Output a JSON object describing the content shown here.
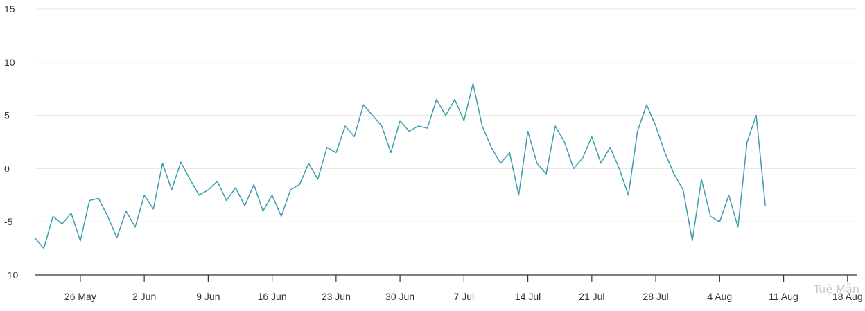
{
  "chart_data": {
    "type": "line",
    "title": "",
    "xlabel": "",
    "ylabel": "",
    "ylim": [
      -10,
      15
    ],
    "yticks": [
      "15",
      "10",
      "5",
      "0",
      "-5",
      "-10"
    ],
    "ytick_values": [
      15,
      10,
      5,
      0,
      -5,
      -10
    ],
    "xticks": [
      "26 May",
      "2 Jun",
      "9 Jun",
      "16 Jun",
      "23 Jun",
      "30 Jun",
      "7 Jul",
      "14 Jul",
      "21 Jul",
      "28 Jul",
      "4 Aug",
      "11 Aug",
      "18 Aug"
    ],
    "xtick_dates": [
      "2024-05-26",
      "2024-06-02",
      "2024-06-09",
      "2024-06-16",
      "2024-06-23",
      "2024-06-30",
      "2024-07-07",
      "2024-07-14",
      "2024-07-21",
      "2024-07-28",
      "2024-08-04",
      "2024-08-11",
      "2024-08-18"
    ],
    "x_range": [
      "2024-05-21",
      "2024-08-19"
    ],
    "grid": true,
    "series": [
      {
        "color": "#3a9cad",
        "points": [
          [
            "2024-05-21",
            -6.5
          ],
          [
            "2024-05-22",
            -7.5
          ],
          [
            "2024-05-23",
            -4.5
          ],
          [
            "2024-05-24",
            -5.2
          ],
          [
            "2024-05-25",
            -4.2
          ],
          [
            "2024-05-26",
            -6.8
          ],
          [
            "2024-05-27",
            -3.0
          ],
          [
            "2024-05-28",
            -2.8
          ],
          [
            "2024-05-29",
            -4.5
          ],
          [
            "2024-05-30",
            -6.5
          ],
          [
            "2024-05-31",
            -4.0
          ],
          [
            "2024-06-01",
            -5.5
          ],
          [
            "2024-06-02",
            -2.5
          ],
          [
            "2024-06-03",
            -3.8
          ],
          [
            "2024-06-04",
            0.5
          ],
          [
            "2024-06-05",
            -2.0
          ],
          [
            "2024-06-06",
            0.6
          ],
          [
            "2024-06-07",
            -1.0
          ],
          [
            "2024-06-08",
            -2.5
          ],
          [
            "2024-06-09",
            -2.0
          ],
          [
            "2024-06-10",
            -1.2
          ],
          [
            "2024-06-11",
            -3.0
          ],
          [
            "2024-06-12",
            -1.8
          ],
          [
            "2024-06-13",
            -3.5
          ],
          [
            "2024-06-14",
            -1.5
          ],
          [
            "2024-06-15",
            -4.0
          ],
          [
            "2024-06-16",
            -2.5
          ],
          [
            "2024-06-17",
            -4.5
          ],
          [
            "2024-06-18",
            -2.0
          ],
          [
            "2024-06-19",
            -1.5
          ],
          [
            "2024-06-20",
            0.5
          ],
          [
            "2024-06-21",
            -1.0
          ],
          [
            "2024-06-22",
            2.0
          ],
          [
            "2024-06-23",
            1.5
          ],
          [
            "2024-06-24",
            4.0
          ],
          [
            "2024-06-25",
            3.0
          ],
          [
            "2024-06-26",
            6.0
          ],
          [
            "2024-06-27",
            5.0
          ],
          [
            "2024-06-28",
            4.0
          ],
          [
            "2024-06-29",
            1.5
          ],
          [
            "2024-06-30",
            4.5
          ],
          [
            "2024-07-01",
            3.5
          ],
          [
            "2024-07-02",
            4.0
          ],
          [
            "2024-07-03",
            3.8
          ],
          [
            "2024-07-04",
            6.5
          ],
          [
            "2024-07-05",
            5.0
          ],
          [
            "2024-07-06",
            6.5
          ],
          [
            "2024-07-07",
            4.5
          ],
          [
            "2024-07-08",
            8.0
          ],
          [
            "2024-07-09",
            4.0
          ],
          [
            "2024-07-10",
            2.0
          ],
          [
            "2024-07-11",
            0.5
          ],
          [
            "2024-07-12",
            1.5
          ],
          [
            "2024-07-13",
            -2.5
          ],
          [
            "2024-07-14",
            3.5
          ],
          [
            "2024-07-15",
            0.5
          ],
          [
            "2024-07-16",
            -0.5
          ],
          [
            "2024-07-17",
            4.0
          ],
          [
            "2024-07-18",
            2.5
          ],
          [
            "2024-07-19",
            0.0
          ],
          [
            "2024-07-20",
            1.0
          ],
          [
            "2024-07-21",
            3.0
          ],
          [
            "2024-07-22",
            0.5
          ],
          [
            "2024-07-23",
            2.0
          ],
          [
            "2024-07-24",
            0.0
          ],
          [
            "2024-07-25",
            -2.5
          ],
          [
            "2024-07-26",
            3.5
          ],
          [
            "2024-07-27",
            6.0
          ],
          [
            "2024-07-28",
            4.0
          ],
          [
            "2024-07-29",
            1.5
          ],
          [
            "2024-07-30",
            -0.5
          ],
          [
            "2024-07-31",
            -2.0
          ],
          [
            "2024-08-01",
            -6.8
          ],
          [
            "2024-08-02",
            -1.0
          ],
          [
            "2024-08-03",
            -4.5
          ],
          [
            "2024-08-04",
            -5.0
          ],
          [
            "2024-08-05",
            -2.5
          ],
          [
            "2024-08-06",
            -5.5
          ],
          [
            "2024-08-07",
            2.5
          ],
          [
            "2024-08-08",
            5.0
          ],
          [
            "2024-08-09",
            -3.5
          ]
        ]
      }
    ]
  },
  "watermark": "Tuệ Mẫn"
}
